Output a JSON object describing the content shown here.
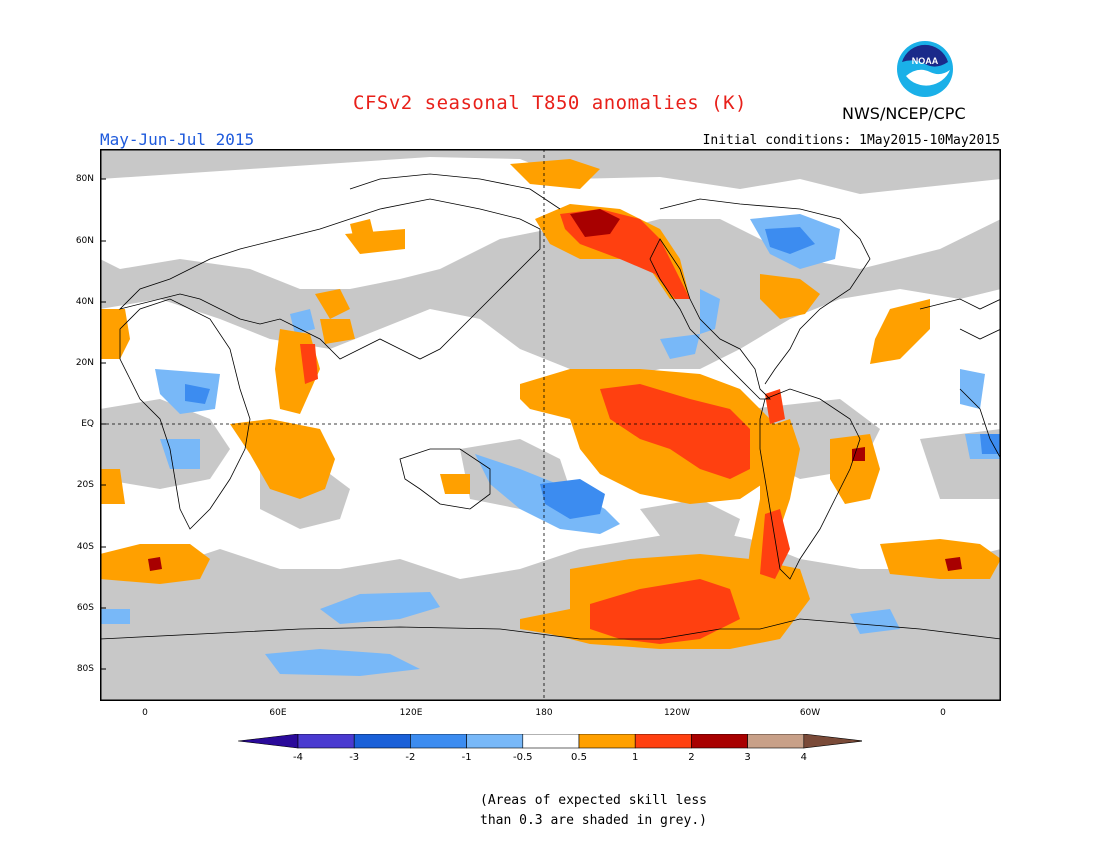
{
  "header": {
    "title": "CFSv2 seasonal T850 anomalies (K)",
    "agency": "NWS/NCEP/CPC",
    "logo_text": "NOAA",
    "season": "May-Jun-Jul 2015",
    "initial_conditions": "Initial conditions: 1May2015-10May2015"
  },
  "axes": {
    "lat_labels": [
      "80N",
      "60N",
      "40N",
      "20N",
      "EQ",
      "20S",
      "40S",
      "60S",
      "80S"
    ],
    "lon_labels": [
      "0",
      "60E",
      "120E",
      "180",
      "120W",
      "60W",
      "0"
    ]
  },
  "legend": {
    "ticks": [
      "-4",
      "-3",
      "-2",
      "-1",
      "-0.5",
      "0.5",
      "1",
      "2",
      "3",
      "4"
    ],
    "colors": [
      "#2a0a9a",
      "#4a3ad0",
      "#1a60d8",
      "#3c8cf0",
      "#78b8f8",
      "#ffffff",
      "#ffa000",
      "#ff4010",
      "#a80000",
      "#c8a088",
      "#7a4a38"
    ]
  },
  "note": {
    "line1": "(Areas of expected skill less",
    "line2": "than 0.3 are shaded in grey.)"
  },
  "colors": {
    "grey": "#c8c8c8",
    "title": "#e8201a",
    "season": "#1e5adc"
  }
}
